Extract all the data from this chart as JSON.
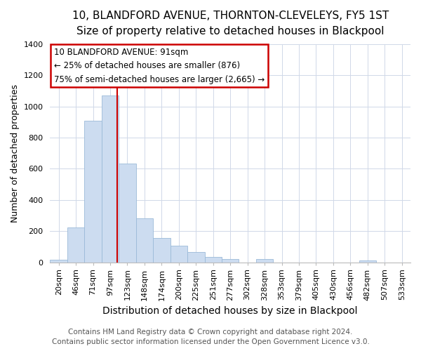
{
  "title1": "10, BLANDFORD AVENUE, THORNTON-CLEVELEYS, FY5 1ST",
  "title2": "Size of property relative to detached houses in Blackpool",
  "xlabel": "Distribution of detached houses by size in Blackpool",
  "ylabel": "Number of detached properties",
  "bar_labels": [
    "20sqm",
    "46sqm",
    "71sqm",
    "97sqm",
    "123sqm",
    "148sqm",
    "174sqm",
    "200sqm",
    "225sqm",
    "251sqm",
    "277sqm",
    "302sqm",
    "328sqm",
    "353sqm",
    "379sqm",
    "405sqm",
    "430sqm",
    "456sqm",
    "482sqm",
    "507sqm",
    "533sqm"
  ],
  "bar_values": [
    15,
    225,
    910,
    1070,
    635,
    280,
    155,
    105,
    65,
    35,
    20,
    0,
    20,
    0,
    0,
    0,
    0,
    0,
    10,
    0,
    0
  ],
  "bar_color": "#ccdcf0",
  "bar_edgecolor": "#9bbad8",
  "vline_x": 3.42,
  "vline_color": "#cc0000",
  "annotation_line1": "10 BLANDFORD AVENUE: 91sqm",
  "annotation_line2": "← 25% of detached houses are smaller (876)",
  "annotation_line3": "75% of semi-detached houses are larger (2,665) →",
  "annotation_box_edgecolor": "#cc0000",
  "annotation_fontsize": 8.5,
  "ylim": [
    0,
    1400
  ],
  "yticks": [
    0,
    200,
    400,
    600,
    800,
    1000,
    1200,
    1400
  ],
  "footer1": "Contains HM Land Registry data © Crown copyright and database right 2024.",
  "footer2": "Contains public sector information licensed under the Open Government Licence v3.0.",
  "title_fontsize": 11,
  "subtitle_fontsize": 10,
  "xlabel_fontsize": 10,
  "ylabel_fontsize": 9,
  "tick_fontsize": 8,
  "footer_fontsize": 7.5,
  "background_color": "#ffffff",
  "grid_color": "#d0d8e8"
}
